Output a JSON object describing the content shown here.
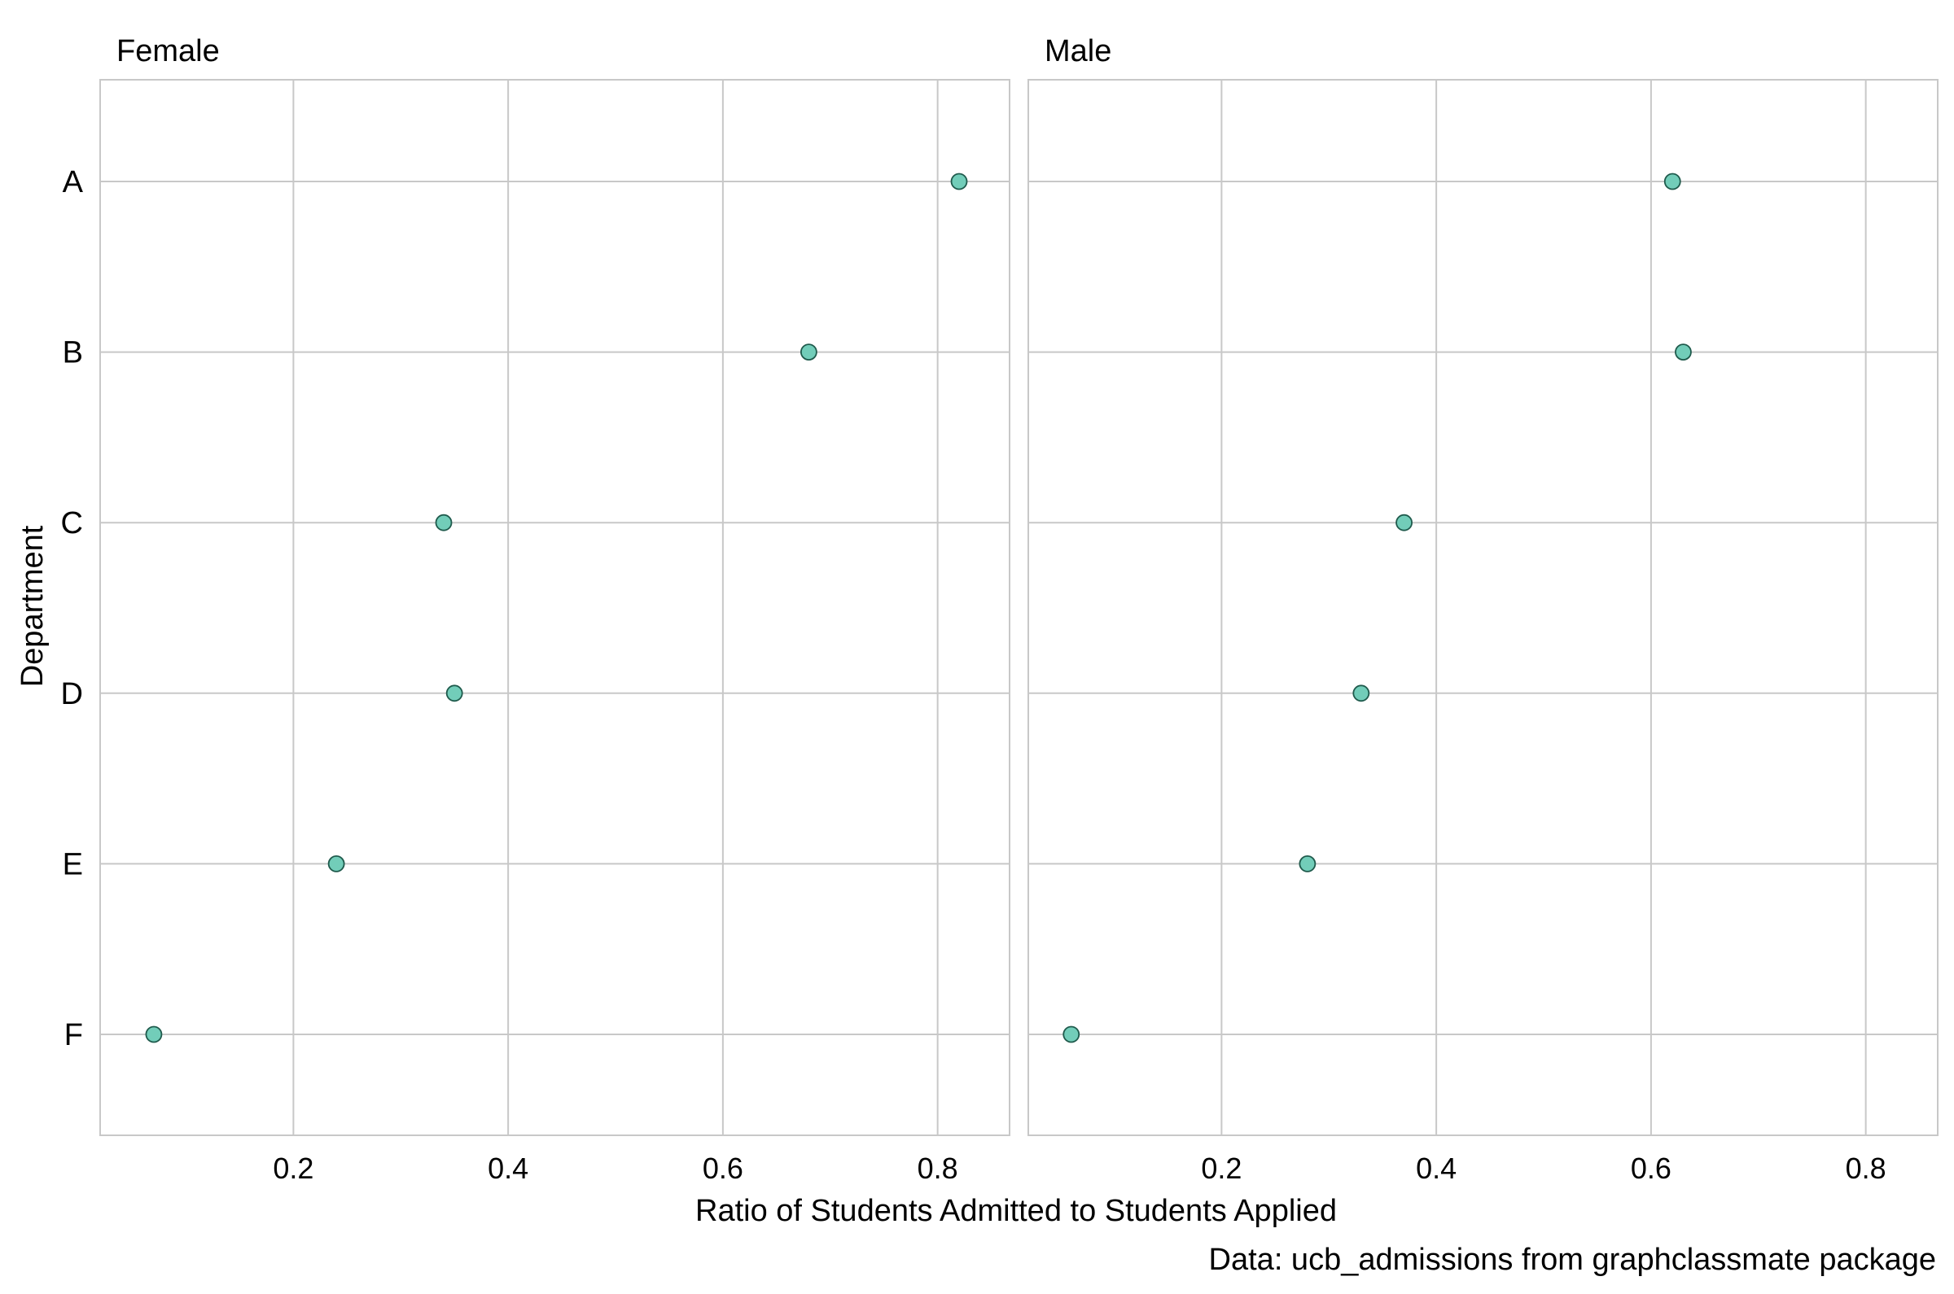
{
  "chart_data": {
    "type": "scatter",
    "title": "",
    "xlabel": "Ratio of Students Admitted to Students Applied",
    "ylabel": "Department",
    "caption": "Data: ucb_admissions from graphclassmate package",
    "categories": [
      "A",
      "B",
      "C",
      "D",
      "E",
      "F"
    ],
    "xlim": [
      0.02,
      0.867
    ],
    "x_ticks": [
      0.2,
      0.4,
      0.6,
      0.8
    ],
    "x_tick_labels": [
      "0.2",
      "0.4",
      "0.6",
      "0.8"
    ],
    "grid": true,
    "point_color": "#72cdb9",
    "point_outline": "#1f5a4c",
    "panels": [
      {
        "name": "Female",
        "values": [
          0.82,
          0.68,
          0.34,
          0.35,
          0.24,
          0.07
        ]
      },
      {
        "name": "Male",
        "values": [
          0.62,
          0.63,
          0.37,
          0.33,
          0.28,
          0.06
        ]
      }
    ]
  }
}
